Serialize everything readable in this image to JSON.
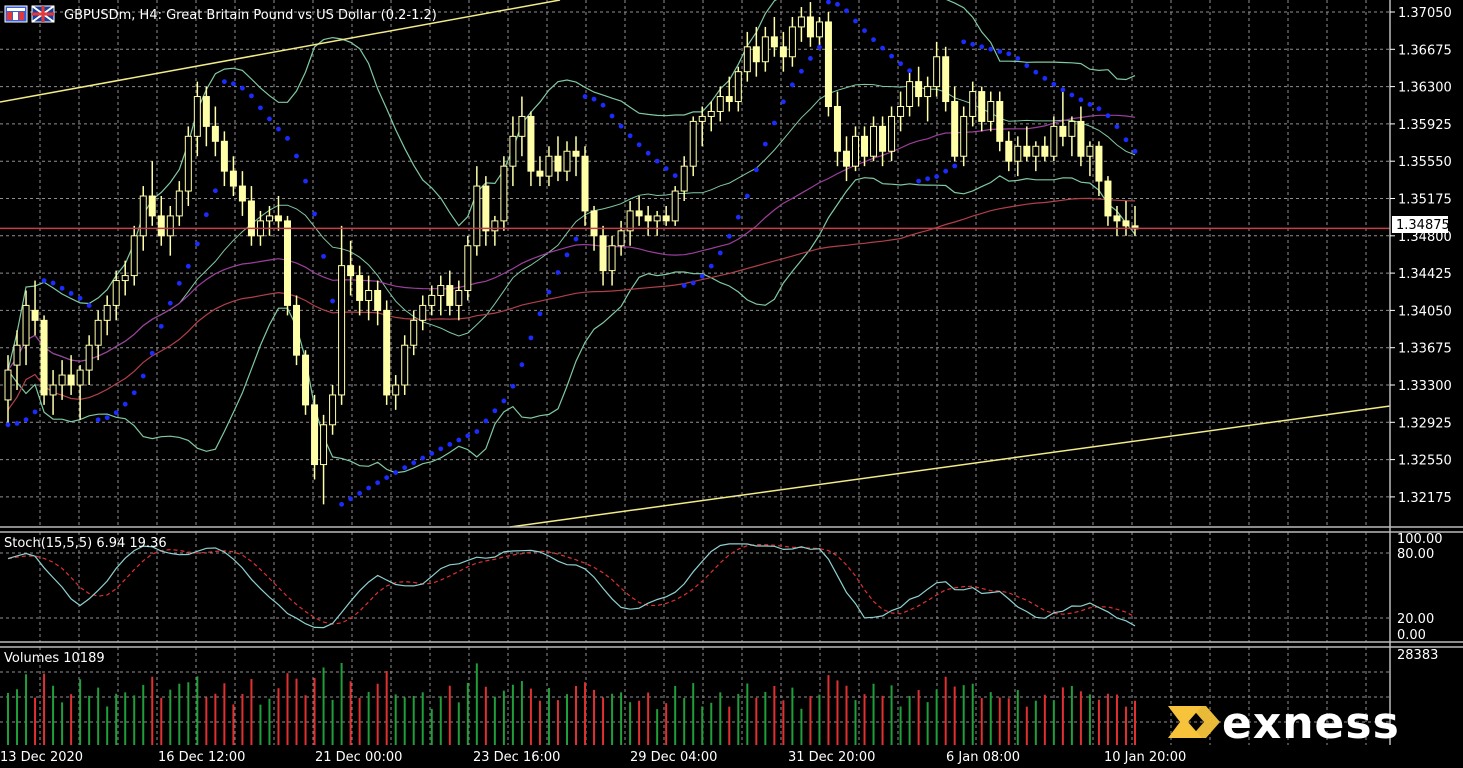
{
  "header": {
    "title": "GBPUSDm, H4:  Great Britain Pound vs US Dollar (0.2-1.2)"
  },
  "colors": {
    "background": "#000000",
    "grid": "#8f8f8f",
    "candle": "#ffffa8",
    "bollinger": "#7fc9a3",
    "ma_slow": "#b0404a",
    "ma_mid": "#9c3f9c",
    "sar": "#1c2cff",
    "trendline": "#f2eb87",
    "price_line": "#c0404a",
    "vol_up": "#1f9e3a",
    "vol_down": "#e03030",
    "stoch_main": "#8fd0d0",
    "stoch_signal": "#e03030",
    "logo_mark": "#f6c33b"
  },
  "icons": [
    "chart-window-icon",
    "symbol-flag-icon",
    "exness-mark-icon"
  ],
  "price_axis": {
    "labels": [
      "1.37050",
      "1.36675",
      "1.36300",
      "1.35925",
      "1.35550",
      "1.35175",
      "1.34800",
      "1.34425",
      "1.34050",
      "1.33675",
      "1.33300",
      "1.32925",
      "1.32550",
      "1.32175"
    ],
    "current_price": "1.34875"
  },
  "time_axis": {
    "labels": [
      "13 Dec 2020",
      "16 Dec 12:00",
      "21 Dec 00:00",
      "23 Dec 16:00",
      "29 Dec 04:00",
      "31 Dec 20:00",
      "6 Jan 08:00",
      "10 Jan 20:00"
    ]
  },
  "stoch": {
    "label": "Stoch(15,5,5) 6.94 19.36",
    "levels": [
      "100.00",
      "80.00",
      "20.00",
      "0.00"
    ]
  },
  "volumes": {
    "label": "Volumes 10189",
    "max_label": "28383"
  },
  "logo": {
    "text": "exness"
  },
  "chart_data": {
    "type": "candlestick",
    "ylim": [
      1.32,
      1.372
    ],
    "candles": [
      [
        1.3315,
        1.336,
        1.329,
        1.3345
      ],
      [
        1.335,
        1.3385,
        1.3325,
        1.337
      ],
      [
        1.337,
        1.3425,
        1.335,
        1.341
      ],
      [
        1.3405,
        1.3435,
        1.338,
        1.3395
      ],
      [
        1.3395,
        1.34,
        1.331,
        1.332
      ],
      [
        1.332,
        1.3345,
        1.33,
        1.333
      ],
      [
        1.333,
        1.3355,
        1.3315,
        1.334
      ],
      [
        1.334,
        1.336,
        1.332,
        1.333
      ],
      [
        1.333,
        1.335,
        1.3295,
        1.3345
      ],
      [
        1.3345,
        1.338,
        1.333,
        1.337
      ],
      [
        1.337,
        1.3405,
        1.3355,
        1.3395
      ],
      [
        1.3395,
        1.342,
        1.338,
        1.341
      ],
      [
        1.341,
        1.3445,
        1.3395,
        1.3435
      ],
      [
        1.3435,
        1.3455,
        1.342,
        1.344
      ],
      [
        1.344,
        1.349,
        1.343,
        1.348
      ],
      [
        1.348,
        1.353,
        1.3465,
        1.352
      ],
      [
        1.352,
        1.3555,
        1.349,
        1.35
      ],
      [
        1.35,
        1.352,
        1.347,
        1.348
      ],
      [
        1.348,
        1.351,
        1.346,
        1.35
      ],
      [
        1.35,
        1.3535,
        1.349,
        1.3525
      ],
      [
        1.3525,
        1.359,
        1.351,
        1.358
      ],
      [
        1.358,
        1.3635,
        1.356,
        1.362
      ],
      [
        1.362,
        1.363,
        1.357,
        1.359
      ],
      [
        1.359,
        1.361,
        1.356,
        1.3575
      ],
      [
        1.3575,
        1.3585,
        1.353,
        1.3545
      ],
      [
        1.3545,
        1.356,
        1.352,
        1.353
      ],
      [
        1.353,
        1.3545,
        1.35,
        1.3515
      ],
      [
        1.3515,
        1.353,
        1.347,
        1.348
      ],
      [
        1.348,
        1.3505,
        1.347,
        1.3495
      ],
      [
        1.3495,
        1.351,
        1.348,
        1.35
      ],
      [
        1.35,
        1.352,
        1.3485,
        1.3495
      ],
      [
        1.3495,
        1.35,
        1.34,
        1.341
      ],
      [
        1.341,
        1.342,
        1.335,
        1.336
      ],
      [
        1.336,
        1.3365,
        1.33,
        1.331
      ],
      [
        1.331,
        1.332,
        1.3235,
        1.325
      ],
      [
        1.325,
        1.33,
        1.321,
        1.329
      ],
      [
        1.329,
        1.333,
        1.328,
        1.332
      ],
      [
        1.332,
        1.349,
        1.331,
        1.345
      ],
      [
        1.345,
        1.3475,
        1.342,
        1.344
      ],
      [
        1.344,
        1.345,
        1.34,
        1.3415
      ],
      [
        1.3415,
        1.344,
        1.3395,
        1.3425
      ],
      [
        1.3425,
        1.3435,
        1.339,
        1.3405
      ],
      [
        1.3405,
        1.3415,
        1.331,
        1.332
      ],
      [
        1.332,
        1.334,
        1.3305,
        1.333
      ],
      [
        1.333,
        1.338,
        1.332,
        1.337
      ],
      [
        1.337,
        1.3405,
        1.336,
        1.3395
      ],
      [
        1.3395,
        1.342,
        1.3385,
        1.341
      ],
      [
        1.341,
        1.343,
        1.34,
        1.342
      ],
      [
        1.342,
        1.344,
        1.34,
        1.343
      ],
      [
        1.343,
        1.3445,
        1.34,
        1.341
      ],
      [
        1.341,
        1.3435,
        1.3395,
        1.3425
      ],
      [
        1.3425,
        1.348,
        1.3415,
        1.347
      ],
      [
        1.347,
        1.355,
        1.346,
        1.353
      ],
      [
        1.353,
        1.354,
        1.347,
        1.3485
      ],
      [
        1.3485,
        1.35,
        1.347,
        1.3495
      ],
      [
        1.3495,
        1.356,
        1.3485,
        1.355
      ],
      [
        1.355,
        1.36,
        1.353,
        1.358
      ],
      [
        1.358,
        1.362,
        1.356,
        1.36
      ],
      [
        1.36,
        1.3605,
        1.353,
        1.3545
      ],
      [
        1.3545,
        1.356,
        1.353,
        1.354
      ],
      [
        1.354,
        1.357,
        1.353,
        1.356
      ],
      [
        1.356,
        1.358,
        1.3535,
        1.3545
      ],
      [
        1.3545,
        1.3575,
        1.3535,
        1.3565
      ],
      [
        1.3565,
        1.358,
        1.354,
        1.356
      ],
      [
        1.356,
        1.357,
        1.349,
        1.3505
      ],
      [
        1.3505,
        1.351,
        1.3465,
        1.348
      ],
      [
        1.348,
        1.349,
        1.343,
        1.3445
      ],
      [
        1.3445,
        1.348,
        1.343,
        1.347
      ],
      [
        1.347,
        1.3495,
        1.346,
        1.3485
      ],
      [
        1.3485,
        1.3515,
        1.347,
        1.3505
      ],
      [
        1.3505,
        1.352,
        1.349,
        1.35
      ],
      [
        1.35,
        1.351,
        1.348,
        1.3495
      ],
      [
        1.3495,
        1.3505,
        1.348,
        1.35
      ],
      [
        1.35,
        1.351,
        1.349,
        1.3495
      ],
      [
        1.3495,
        1.353,
        1.349,
        1.3525
      ],
      [
        1.3525,
        1.356,
        1.3515,
        1.355
      ],
      [
        1.355,
        1.36,
        1.354,
        1.3595
      ],
      [
        1.3595,
        1.361,
        1.357,
        1.36
      ],
      [
        1.36,
        1.3615,
        1.3585,
        1.3605
      ],
      [
        1.3605,
        1.363,
        1.3595,
        1.362
      ],
      [
        1.362,
        1.364,
        1.3605,
        1.3615
      ],
      [
        1.3615,
        1.365,
        1.3605,
        1.3645
      ],
      [
        1.3645,
        1.3685,
        1.3635,
        1.367
      ],
      [
        1.367,
        1.369,
        1.364,
        1.3655
      ],
      [
        1.3655,
        1.369,
        1.3645,
        1.368
      ],
      [
        1.368,
        1.37,
        1.366,
        1.367
      ],
      [
        1.367,
        1.3685,
        1.3645,
        1.366
      ],
      [
        1.366,
        1.37,
        1.365,
        1.369
      ],
      [
        1.369,
        1.371,
        1.3675,
        1.37
      ],
      [
        1.37,
        1.3715,
        1.367,
        1.368
      ],
      [
        1.368,
        1.37,
        1.367,
        1.3695
      ],
      [
        1.3695,
        1.3705,
        1.36,
        1.361
      ],
      [
        1.361,
        1.3625,
        1.355,
        1.3565
      ],
      [
        1.3565,
        1.358,
        1.3535,
        1.355
      ],
      [
        1.355,
        1.359,
        1.3545,
        1.358
      ],
      [
        1.358,
        1.359,
        1.355,
        1.356
      ],
      [
        1.356,
        1.36,
        1.3555,
        1.359
      ],
      [
        1.359,
        1.36,
        1.355,
        1.3565
      ],
      [
        1.3565,
        1.361,
        1.3555,
        1.36
      ],
      [
        1.36,
        1.3625,
        1.3585,
        1.361
      ],
      [
        1.361,
        1.3645,
        1.36,
        1.3635
      ],
      [
        1.3635,
        1.365,
        1.361,
        1.362
      ],
      [
        1.362,
        1.364,
        1.3595,
        1.363
      ],
      [
        1.363,
        1.3675,
        1.362,
        1.366
      ],
      [
        1.366,
        1.367,
        1.3605,
        1.3615
      ],
      [
        1.3615,
        1.363,
        1.3555,
        1.356
      ],
      [
        1.356,
        1.361,
        1.355,
        1.36
      ],
      [
        1.36,
        1.3635,
        1.359,
        1.3625
      ],
      [
        1.3625,
        1.363,
        1.3585,
        1.3595
      ],
      [
        1.3595,
        1.3625,
        1.3585,
        1.3615
      ],
      [
        1.3615,
        1.3625,
        1.3565,
        1.3575
      ],
      [
        1.3575,
        1.3585,
        1.3545,
        1.3555
      ],
      [
        1.3555,
        1.358,
        1.354,
        1.357
      ],
      [
        1.357,
        1.359,
        1.3555,
        1.356
      ],
      [
        1.356,
        1.3575,
        1.3545,
        1.357
      ],
      [
        1.357,
        1.358,
        1.3555,
        1.356
      ],
      [
        1.356,
        1.36,
        1.3555,
        1.359
      ],
      [
        1.359,
        1.3625,
        1.357,
        1.358
      ],
      [
        1.358,
        1.36,
        1.356,
        1.3595
      ],
      [
        1.3595,
        1.361,
        1.355,
        1.356
      ],
      [
        1.356,
        1.3575,
        1.354,
        1.357
      ],
      [
        1.357,
        1.3575,
        1.352,
        1.3535
      ],
      [
        1.3535,
        1.354,
        1.349,
        1.35
      ],
      [
        1.35,
        1.351,
        1.348,
        1.3495
      ],
      [
        1.3495,
        1.3515,
        1.348,
        1.349
      ],
      [
        1.349,
        1.351,
        1.348,
        1.3487
      ]
    ],
    "trendline_y": 1.34875
  }
}
